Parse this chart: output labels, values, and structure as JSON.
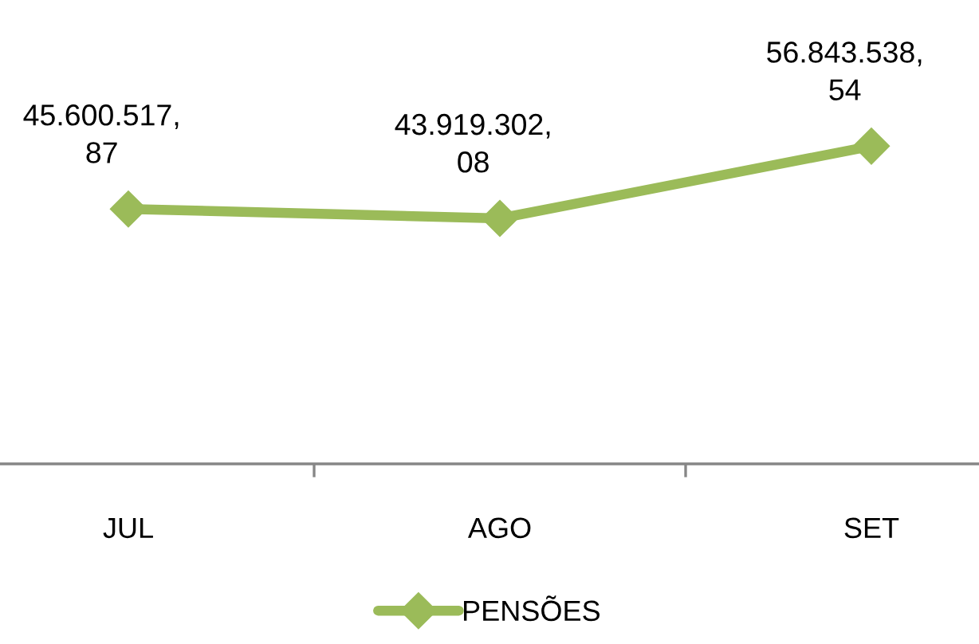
{
  "chart_data": {
    "type": "line",
    "categories": [
      "JUL",
      "AGO",
      "SET"
    ],
    "series": [
      {
        "name": "PENSÕES",
        "color": "#9bbb59",
        "values": [
          45600517.87,
          43919302.08,
          56843538.54
        ],
        "value_labels": [
          "45.600.517,87",
          "43.919.302,08",
          "56.843.538,54"
        ]
      }
    ],
    "marker": "diamond",
    "line_style": "solid",
    "legend": "bottom",
    "grid": false
  }
}
